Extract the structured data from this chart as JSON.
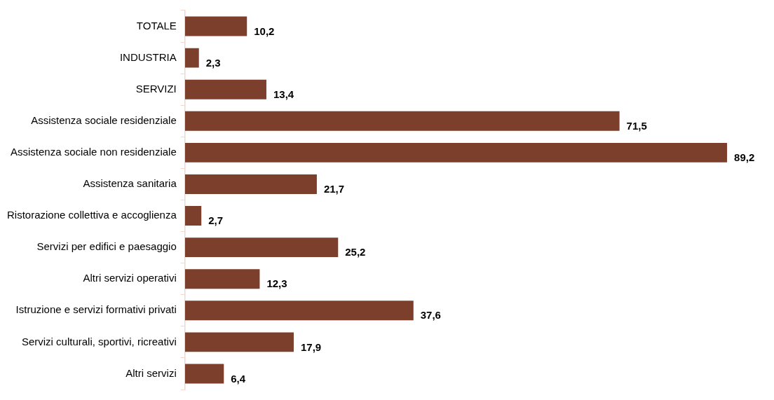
{
  "chart_data": {
    "type": "bar",
    "orientation": "horizontal",
    "categories": [
      "TOTALE",
      "INDUSTRIA",
      "SERVIZI",
      "Assistenza sociale residenziale",
      "Assistenza sociale non residenziale",
      "Assistenza sanitaria",
      "Ristorazione collettiva e accoglienza",
      "Servizi per edifici e paesaggio",
      "Altri servizi operativi",
      "Istruzione e servizi formativi privati",
      "Servizi culturali, sportivi, ricreativi",
      "Altri servizi"
    ],
    "values": [
      10.2,
      2.3,
      13.4,
      71.5,
      89.2,
      21.7,
      2.7,
      25.2,
      12.3,
      37.6,
      17.9,
      6.4
    ],
    "value_labels": [
      "10,2",
      "2,3",
      "13,4",
      "71,5",
      "89,2",
      "21,7",
      "2,7",
      "25,2",
      "12,3",
      "37,6",
      "17,9",
      "6,4"
    ],
    "color": "#7b3f2b",
    "grid": false,
    "legend": false,
    "tick_labels": "y"
  }
}
